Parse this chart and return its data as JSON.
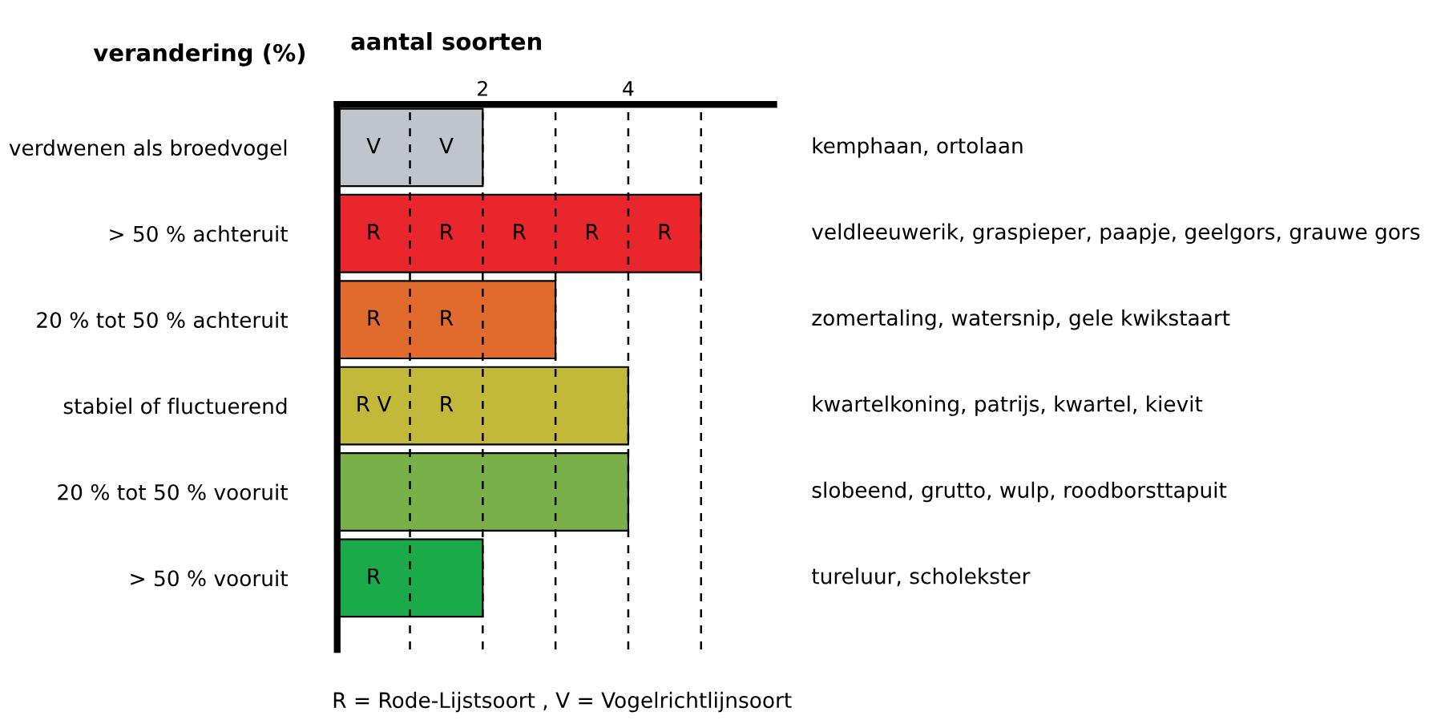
{
  "chart_data": {
    "type": "bar",
    "orientation": "horizontal",
    "xlabel": "aantal soorten",
    "ylabel": "verandering (%)",
    "categories": [
      "verdwenen als broedvogel",
      "> 50 % achteruit",
      "20 % tot 50 % achteruit",
      "stabiel of fluctuerend",
      "20 % tot 50 % vooruit",
      "> 50 % vooruit"
    ],
    "values": [
      2,
      5,
      3,
      4,
      4,
      2
    ],
    "colors": [
      "#c0c4cc",
      "#e8262c",
      "#e06b2c",
      "#c2b83a",
      "#7ab04a",
      "#1aaa4a"
    ],
    "xlim": [
      0,
      6
    ],
    "xticks": [
      {
        "value": 1,
        "label": null
      },
      2,
      {
        "value": 3,
        "label": null
      },
      4,
      {
        "value": 5,
        "label": null
      }
    ],
    "grid": "x",
    "annotations": [
      {
        "text": "V",
        "x": 0.5,
        "y": "verdwenen als broedvogel"
      },
      {
        "text": "V",
        "x": 1.5,
        "y": "verdwenen als broedvogel"
      },
      {
        "text": "R",
        "x": 0.5,
        "y": "> 50 % achteruit"
      },
      {
        "text": "R",
        "x": 1.5,
        "y": "> 50 % achteruit"
      },
      {
        "text": "R",
        "x": 2.5,
        "y": "> 50 % achteruit"
      },
      {
        "text": "R",
        "x": 3.5,
        "y": "> 50 % achteruit"
      },
      {
        "text": "R",
        "x": 4.5,
        "y": "> 50 % achteruit"
      },
      {
        "text": "R",
        "x": 0.5,
        "y": "20 % tot 50 % achteruit"
      },
      {
        "text": "R",
        "x": 1.5,
        "y": "20 % tot 50 % achteruit"
      },
      {
        "text": "R V",
        "x": 0.5,
        "y": "stabiel of fluctuerend"
      },
      {
        "text": "R",
        "x": 1.5,
        "y": "stabiel of fluctuerend"
      },
      {
        "text": "R",
        "x": 0.5,
        "y": "> 50 % vooruit"
      },
      "kemphaan, ortolaan",
      "veldleeuwerik, graspieper, paapje, geelgors, grauwe gors",
      "zomertaling, watersnip, gele kwikstaart",
      "kwartelkoning, patrijs, kwartel, kievit",
      "slobeend, grutto, wulp, roodborsttapuit",
      "tureluur, scholekster",
      "R = Rode-Lijstsoort , V = Vogelrichtlijnsoort"
    ]
  }
}
